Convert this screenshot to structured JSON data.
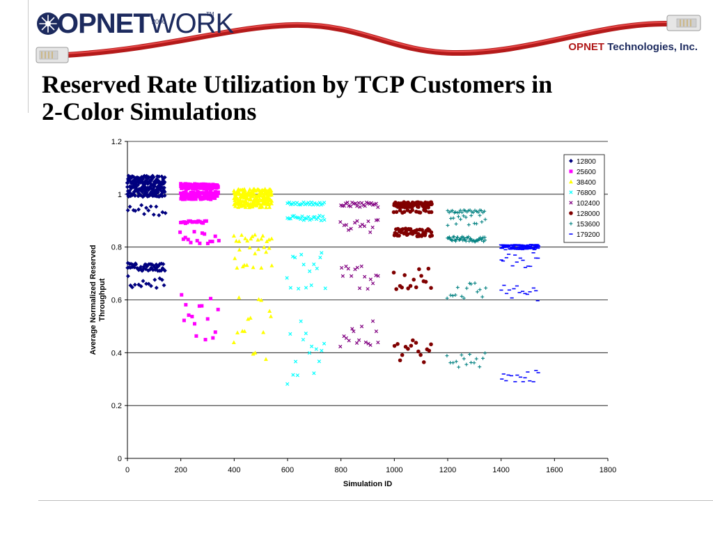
{
  "header": {
    "logo": {
      "bold": "OPNET",
      "light": "WORK",
      "year": "2000",
      "tm": "TM"
    },
    "company": {
      "brand": "OPNET",
      "rest": " Technologies, Inc."
    }
  },
  "slide": {
    "title_line1": "Reserved Rate Utilization by TCP Customers in",
    "title_line2": "2-Color Simulations"
  },
  "chart_data": {
    "type": "scatter",
    "title": "",
    "xlabel": "Simulation  ID",
    "ylabel": "Average Normalized Reserved Throughput",
    "xlim": [
      0,
      1800
    ],
    "ylim": [
      0,
      1.2
    ],
    "xticks": [
      0,
      200,
      400,
      600,
      800,
      1000,
      1200,
      1400,
      1600,
      1800
    ],
    "yticks": [
      0,
      0.2,
      0.4,
      0.6,
      0.8,
      1,
      1.2
    ],
    "ytick_labels": [
      "0",
      "0.2",
      "0.4",
      "0.6",
      "0.8",
      "1",
      "1.2"
    ],
    "grid": "horizontal",
    "legend_position": "top-right",
    "series": [
      {
        "name": "12800",
        "color": "#00007f",
        "marker": "diamond",
        "x_range": [
          0,
          140
        ],
        "bands": [
          {
            "y": [
              1.03,
              1.07
            ],
            "density": "dense"
          },
          {
            "y": [
              0.99,
              1.03
            ],
            "density": "dense"
          },
          {
            "y": [
              0.92,
              0.96
            ],
            "density": "sparse"
          },
          {
            "y": [
              0.71,
              0.74
            ],
            "density": "medium"
          },
          {
            "y": [
              0.64,
              0.69
            ],
            "density": "sparse"
          }
        ]
      },
      {
        "name": "25600",
        "color": "#ff00ff",
        "marker": "square",
        "x_range": [
          200,
          340
        ],
        "bands": [
          {
            "y": [
              1.02,
              1.04
            ],
            "density": "dense"
          },
          {
            "y": [
              0.98,
              1.01
            ],
            "density": "dense"
          },
          {
            "y": [
              0.89,
              0.9
            ],
            "density": "line",
            "x_range": [
              200,
              300
            ]
          },
          {
            "y": [
              0.81,
              0.86
            ],
            "density": "sparse"
          },
          {
            "y": [
              0.44,
              0.63
            ],
            "density": "sparse"
          }
        ]
      },
      {
        "name": "38400",
        "color": "#ffff00",
        "marker": "triangle",
        "x_range": [
          400,
          540
        ],
        "bands": [
          {
            "y": [
              0.99,
              1.02
            ],
            "density": "dense"
          },
          {
            "y": [
              0.95,
              0.99
            ],
            "density": "dense"
          },
          {
            "y": [
              0.82,
              0.85
            ],
            "density": "sparse"
          },
          {
            "y": [
              0.72,
              0.8
            ],
            "density": "sparse"
          },
          {
            "y": [
              0.37,
              0.61
            ],
            "density": "sparse"
          }
        ]
      },
      {
        "name": "76800",
        "color": "#00ffff",
        "marker": "x",
        "x_range": [
          600,
          740
        ],
        "bands": [
          {
            "y": [
              0.96,
              0.97
            ],
            "density": "line"
          },
          {
            "y": [
              0.9,
              0.92
            ],
            "density": "line"
          },
          {
            "y": [
              0.64,
              0.78
            ],
            "density": "sparse"
          },
          {
            "y": [
              0.27,
              0.55
            ],
            "density": "sparse"
          }
        ]
      },
      {
        "name": "102400",
        "color": "#800080",
        "marker": "x",
        "x_range": [
          800,
          940
        ],
        "bands": [
          {
            "y": [
              0.95,
              0.97
            ],
            "density": "line"
          },
          {
            "y": [
              0.85,
              0.91
            ],
            "density": "sparse"
          },
          {
            "y": [
              0.64,
              0.74
            ],
            "density": "sparse"
          },
          {
            "y": [
              0.41,
              0.52
            ],
            "density": "sparse"
          }
        ]
      },
      {
        "name": "128000",
        "color": "#800000",
        "marker": "circle",
        "x_range": [
          1000,
          1140
        ],
        "bands": [
          {
            "y": [
              0.95,
              0.97
            ],
            "density": "dense"
          },
          {
            "y": [
              0.93,
              0.94
            ],
            "density": "sparse"
          },
          {
            "y": [
              0.84,
              0.87
            ],
            "density": "medium"
          },
          {
            "y": [
              0.64,
              0.72
            ],
            "density": "sparse"
          },
          {
            "y": [
              0.36,
              0.45
            ],
            "density": "sparse"
          }
        ]
      },
      {
        "name": "153600",
        "color": "#008080",
        "marker": "plus",
        "x_range": [
          1200,
          1340
        ],
        "bands": [
          {
            "y": [
              0.93,
              0.94
            ],
            "density": "line"
          },
          {
            "y": [
              0.87,
              0.92
            ],
            "density": "sparse"
          },
          {
            "y": [
              0.82,
              0.84
            ],
            "density": "medium"
          },
          {
            "y": [
              0.6,
              0.67
            ],
            "density": "sparse"
          },
          {
            "y": [
              0.34,
              0.4
            ],
            "density": "sparse"
          }
        ]
      },
      {
        "name": "179200",
        "color": "#0000ff",
        "marker": "dash",
        "x_range": [
          1400,
          1540
        ],
        "bands": [
          {
            "y": [
              0.79,
              0.81
            ],
            "density": "dense"
          },
          {
            "y": [
              0.72,
              0.78
            ],
            "density": "sparse"
          },
          {
            "y": [
              0.59,
              0.66
            ],
            "density": "sparse"
          },
          {
            "y": [
              0.29,
              0.35
            ],
            "density": "sparse"
          }
        ]
      }
    ]
  }
}
